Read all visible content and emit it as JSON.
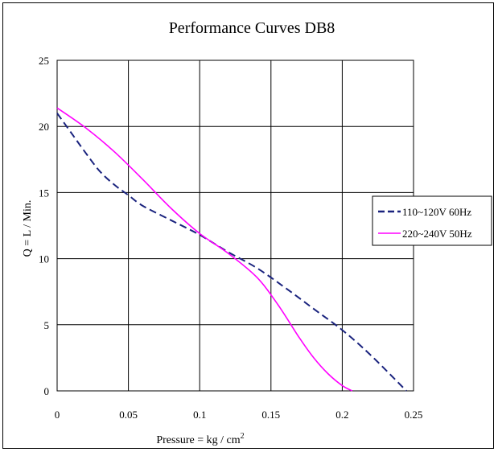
{
  "chart_data": {
    "type": "line",
    "title": "Performance  Curves  DB8",
    "xlabel": "Pressure = kg / cm",
    "xlabel_superscript": "2",
    "ylabel": "Q = L / Min.",
    "xlim": [
      0,
      0.25
    ],
    "ylim": [
      0,
      25
    ],
    "xticks": [
      "0",
      "0.05",
      "0.1",
      "0.15",
      "0.2",
      "0.25"
    ],
    "xtick_values": [
      0,
      0.05,
      0.1,
      0.15,
      0.2,
      0.25
    ],
    "yticks": [
      "0",
      "5",
      "10",
      "15",
      "20",
      "25"
    ],
    "ytick_values": [
      0,
      5,
      10,
      15,
      20,
      25
    ],
    "grid": true,
    "legend_position": "right",
    "series": [
      {
        "name": "110~120V 60Hz",
        "color": "#1a237e",
        "style": "dashed",
        "points": [
          [
            0,
            21.0
          ],
          [
            0.01,
            19.5
          ],
          [
            0.02,
            18.0
          ],
          [
            0.03,
            16.6
          ],
          [
            0.04,
            15.6
          ],
          [
            0.05,
            14.8
          ],
          [
            0.06,
            14.0
          ],
          [
            0.08,
            12.9
          ],
          [
            0.1,
            11.8
          ],
          [
            0.12,
            10.5
          ],
          [
            0.14,
            9.3
          ],
          [
            0.16,
            7.8
          ],
          [
            0.18,
            6.2
          ],
          [
            0.2,
            4.6
          ],
          [
            0.22,
            2.7
          ],
          [
            0.245,
            0
          ]
        ]
      },
      {
        "name": "220~240V 50Hz",
        "color": "#ff00ff",
        "style": "solid",
        "points": [
          [
            0,
            21.4
          ],
          [
            0.02,
            19.9
          ],
          [
            0.04,
            18.1
          ],
          [
            0.06,
            16.0
          ],
          [
            0.08,
            13.8
          ],
          [
            0.1,
            11.9
          ],
          [
            0.12,
            10.4
          ],
          [
            0.14,
            8.6
          ],
          [
            0.155,
            6.5
          ],
          [
            0.17,
            4.0
          ],
          [
            0.18,
            2.5
          ],
          [
            0.19,
            1.3
          ],
          [
            0.2,
            0.4
          ],
          [
            0.207,
            0
          ]
        ]
      }
    ]
  }
}
